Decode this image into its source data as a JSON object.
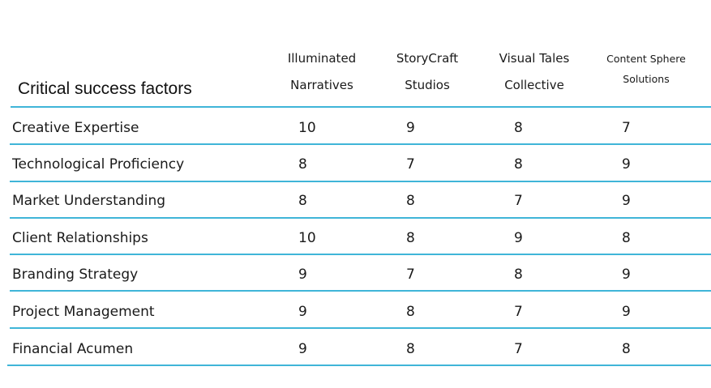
{
  "table": {
    "title": "Critical success factors",
    "columns": [
      {
        "line1": "Illuminated",
        "line2": "Narratives"
      },
      {
        "line1": "StoryCraft",
        "line2": "Studios"
      },
      {
        "line1": "Visual Tales",
        "line2": "Collective"
      },
      {
        "line1": "Content Sphere",
        "line2": "Solutions"
      }
    ],
    "rows": [
      {
        "label": "Creative Expertise",
        "values": [
          "10",
          "9",
          "8",
          "7"
        ]
      },
      {
        "label": "Technological Proficiency",
        "values": [
          "8",
          "7",
          "8",
          "9"
        ]
      },
      {
        "label": "Market Understanding",
        "values": [
          "8",
          "8",
          "7",
          "9"
        ]
      },
      {
        "label": "Client Relationships",
        "values": [
          "10",
          "8",
          "9",
          "8"
        ]
      },
      {
        "label": "Branding Strategy",
        "values": [
          "9",
          "7",
          "8",
          "9"
        ]
      },
      {
        "label": "Project Management",
        "values": [
          "9",
          "8",
          "7",
          "9"
        ]
      },
      {
        "label": "Financial Acumen",
        "values": [
          "9",
          "8",
          "7",
          "8"
        ]
      }
    ]
  },
  "colors": {
    "rule": "#3fb5d8",
    "text": "#1a1a1a"
  }
}
